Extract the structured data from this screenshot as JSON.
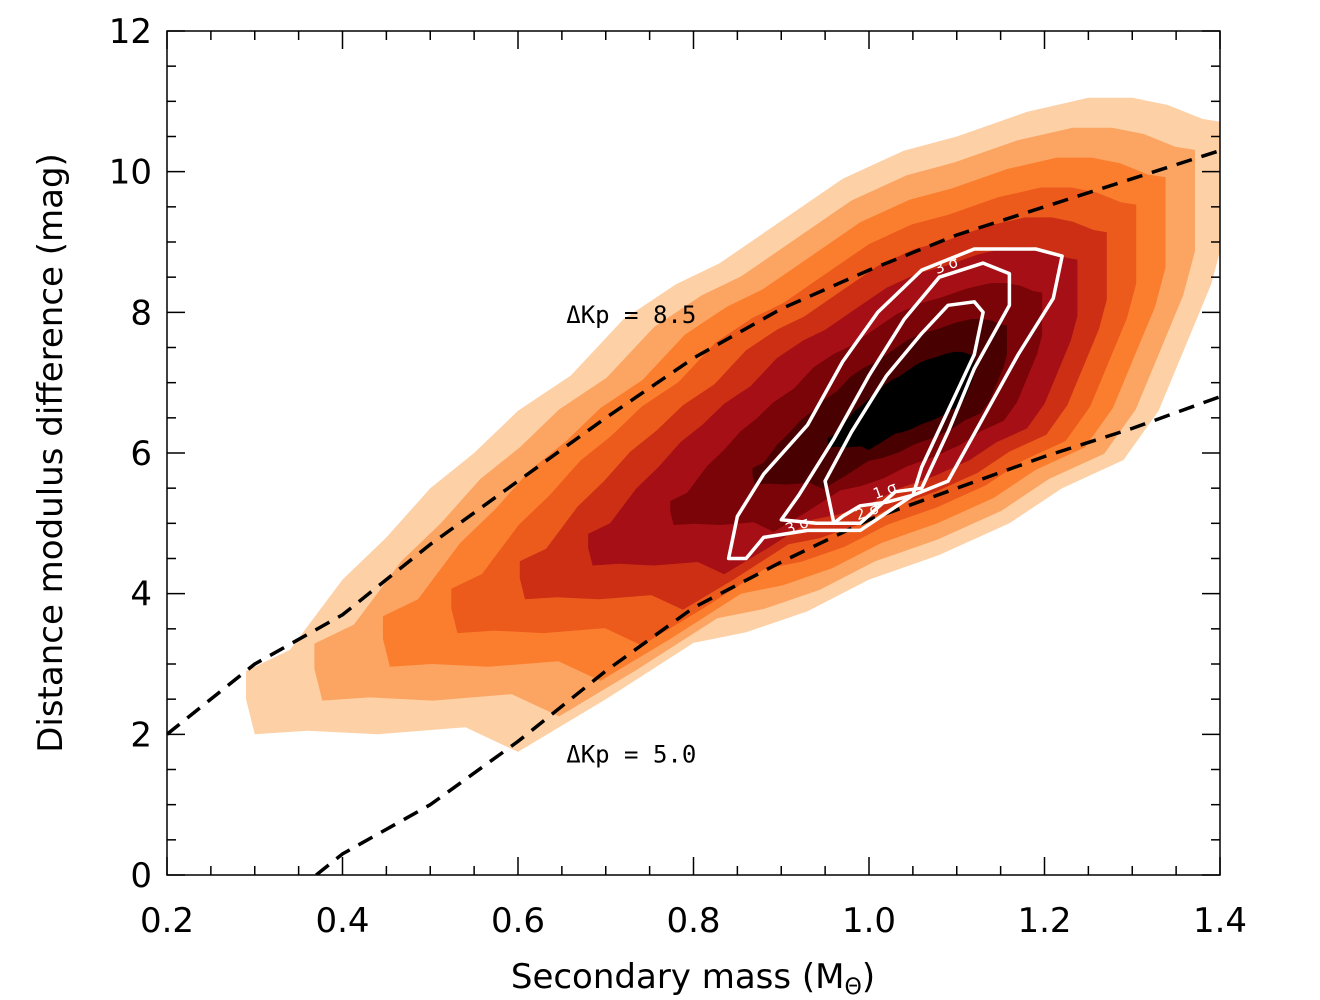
{
  "chart_data": {
    "type": "contour",
    "xlabel": "Secondary mass (M",
    "xlabel_sub": "Θ",
    "xlabel_close": ")",
    "ylabel": "Distance modulus difference (mag)",
    "xlim": [
      0.2,
      1.4
    ],
    "ylim": [
      0,
      12
    ],
    "x_ticks": [
      "0.2",
      "0.4",
      "0.6",
      "0.8",
      "1.0",
      "1.2",
      "1.4"
    ],
    "y_ticks": [
      "0",
      "2",
      "4",
      "6",
      "8",
      "10",
      "12"
    ],
    "colors": {
      "level1": "#fdd0a6",
      "level2": "#fca562",
      "level3": "#fb7e2e",
      "level4": "#ec5a1c",
      "level5": "#cc2f14",
      "level6": "#a50f15",
      "level7": "#7a0408",
      "level8": "#480000",
      "core": "#000000",
      "sigma_lines": "#ffffff"
    },
    "density_center": [
      1.07,
      6.8
    ],
    "sigma_contours": [
      {
        "label": "1 σ",
        "vertices": [
          [
            0.96,
            5.0
          ],
          [
            0.95,
            5.6
          ],
          [
            0.98,
            6.3
          ],
          [
            1.02,
            7.1
          ],
          [
            1.06,
            7.7
          ],
          [
            1.09,
            8.1
          ],
          [
            1.12,
            8.15
          ],
          [
            1.13,
            8.0
          ],
          [
            1.12,
            7.4
          ],
          [
            1.09,
            6.6
          ],
          [
            1.06,
            5.8
          ],
          [
            1.05,
            5.4
          ],
          [
            1.02,
            5.3
          ],
          [
            0.99,
            5.25
          ],
          [
            0.97,
            5.1
          ]
        ]
      },
      {
        "label": "2 σ",
        "vertices": [
          [
            0.9,
            5.05
          ],
          [
            0.92,
            5.4
          ],
          [
            0.96,
            6.2
          ],
          [
            1.0,
            7.1
          ],
          [
            1.04,
            7.9
          ],
          [
            1.08,
            8.5
          ],
          [
            1.13,
            8.7
          ],
          [
            1.16,
            8.55
          ],
          [
            1.16,
            8.1
          ],
          [
            1.12,
            7.2
          ],
          [
            1.09,
            6.3
          ],
          [
            1.06,
            5.5
          ],
          [
            1.03,
            5.45
          ],
          [
            0.99,
            5.0
          ],
          [
            0.94,
            5.0
          ]
        ]
      },
      {
        "label": "3 σ",
        "vertices": [
          [
            0.84,
            4.5
          ],
          [
            0.85,
            5.1
          ],
          [
            0.88,
            5.7
          ],
          [
            0.93,
            6.4
          ],
          [
            0.97,
            7.3
          ],
          [
            1.01,
            8.0
          ],
          [
            1.06,
            8.6
          ],
          [
            1.12,
            8.9
          ],
          [
            1.19,
            8.9
          ],
          [
            1.22,
            8.8
          ],
          [
            1.21,
            8.2
          ],
          [
            1.17,
            7.4
          ],
          [
            1.13,
            6.5
          ],
          [
            1.09,
            5.6
          ],
          [
            1.05,
            5.4
          ],
          [
            0.99,
            4.9
          ],
          [
            0.93,
            4.9
          ],
          [
            0.88,
            4.8
          ],
          [
            0.86,
            4.5
          ]
        ]
      }
    ],
    "sigma_labels": [
      {
        "text": "3 σ",
        "x": 1.09,
        "y": 8.6
      },
      {
        "text": "3 σ",
        "x": 0.92,
        "y": 4.9
      },
      {
        "text": "1 σ",
        "x": 1.02,
        "y": 5.4
      },
      {
        "text": "2 σ",
        "x": 1.0,
        "y": 5.1
      }
    ],
    "lines": [
      {
        "name": "ΔKp = 8.5",
        "style": "dashed",
        "x": [
          0.2,
          0.3,
          0.4,
          0.5,
          0.6,
          0.7,
          0.8,
          0.9,
          1.0,
          1.1,
          1.2,
          1.3,
          1.4
        ],
        "y": [
          2.0,
          3.0,
          3.7,
          4.7,
          5.6,
          6.5,
          7.35,
          8.05,
          8.6,
          9.1,
          9.5,
          9.9,
          10.3
        ]
      },
      {
        "name": "ΔKp = 5.0",
        "style": "dashed",
        "x": [
          0.37,
          0.4,
          0.5,
          0.6,
          0.7,
          0.8,
          0.9,
          1.0,
          1.1,
          1.2,
          1.3,
          1.4
        ],
        "y": [
          0.0,
          0.3,
          1.0,
          1.9,
          2.9,
          3.8,
          4.45,
          5.05,
          5.5,
          5.95,
          6.35,
          6.8
        ]
      }
    ],
    "annotations": [
      {
        "text": "ΔKp = 8.5",
        "x": 0.655,
        "y": 7.85
      },
      {
        "text": "ΔKp = 5.0",
        "x": 0.655,
        "y": 1.6
      }
    ]
  }
}
